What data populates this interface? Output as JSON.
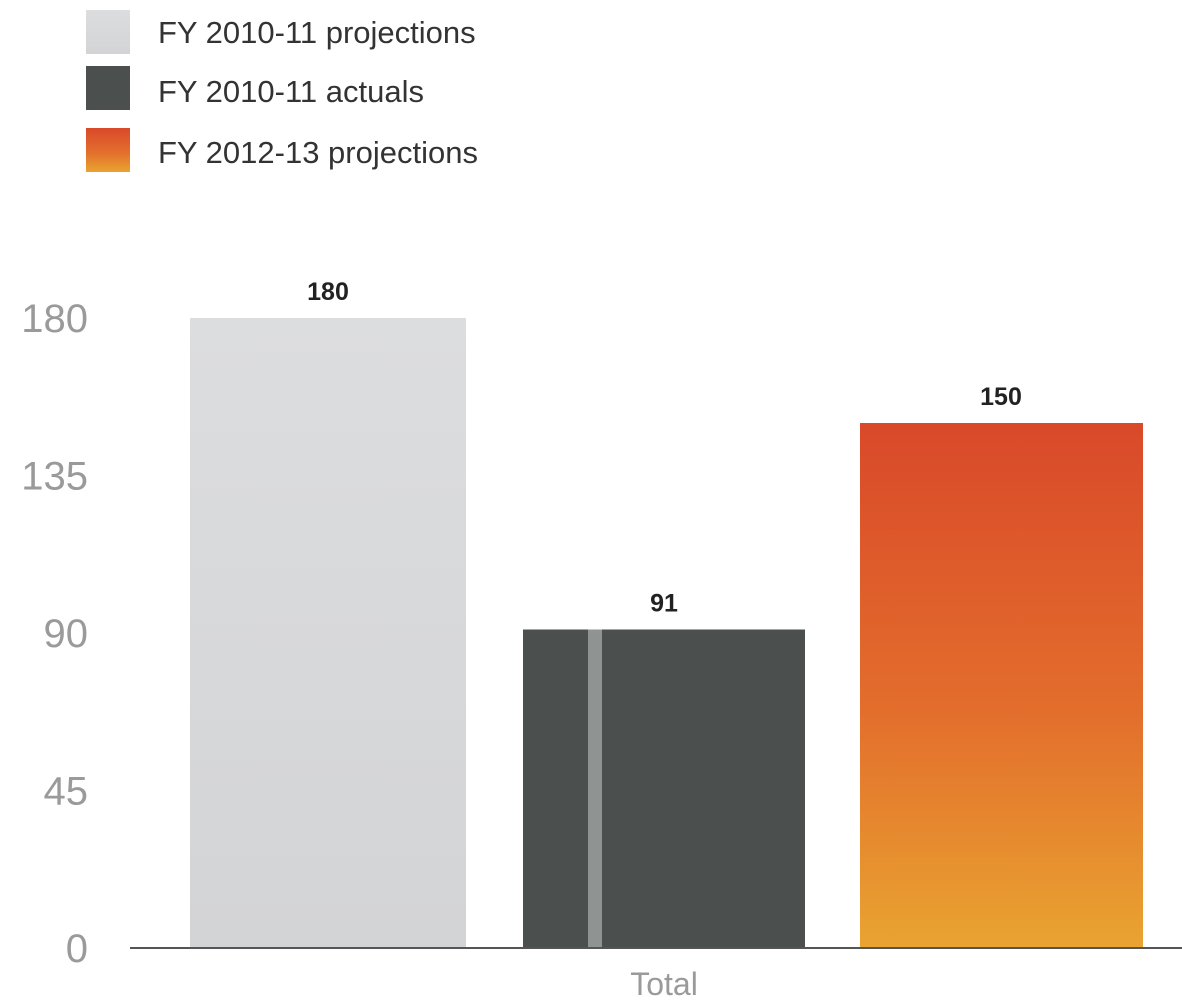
{
  "chart_data": {
    "type": "bar",
    "categories": [
      "Total"
    ],
    "series": [
      {
        "name": "FY 2010-11 projections",
        "values": [
          180
        ],
        "color": "#d5d6d8"
      },
      {
        "name": "FY 2010-11 actuals",
        "values": [
          91
        ],
        "color": "#4b4f4d"
      },
      {
        "name": "FY 2012-13 projections",
        "values": [
          150
        ],
        "color": "#e0602e"
      }
    ],
    "data_labels": [
      "180",
      "91",
      "150"
    ],
    "ylim": [
      0,
      180
    ],
    "yticks": [
      0,
      45,
      90,
      135,
      180
    ],
    "grid": false,
    "legend": "top-left",
    "title": "",
    "xlabel": "",
    "ylabel": ""
  }
}
